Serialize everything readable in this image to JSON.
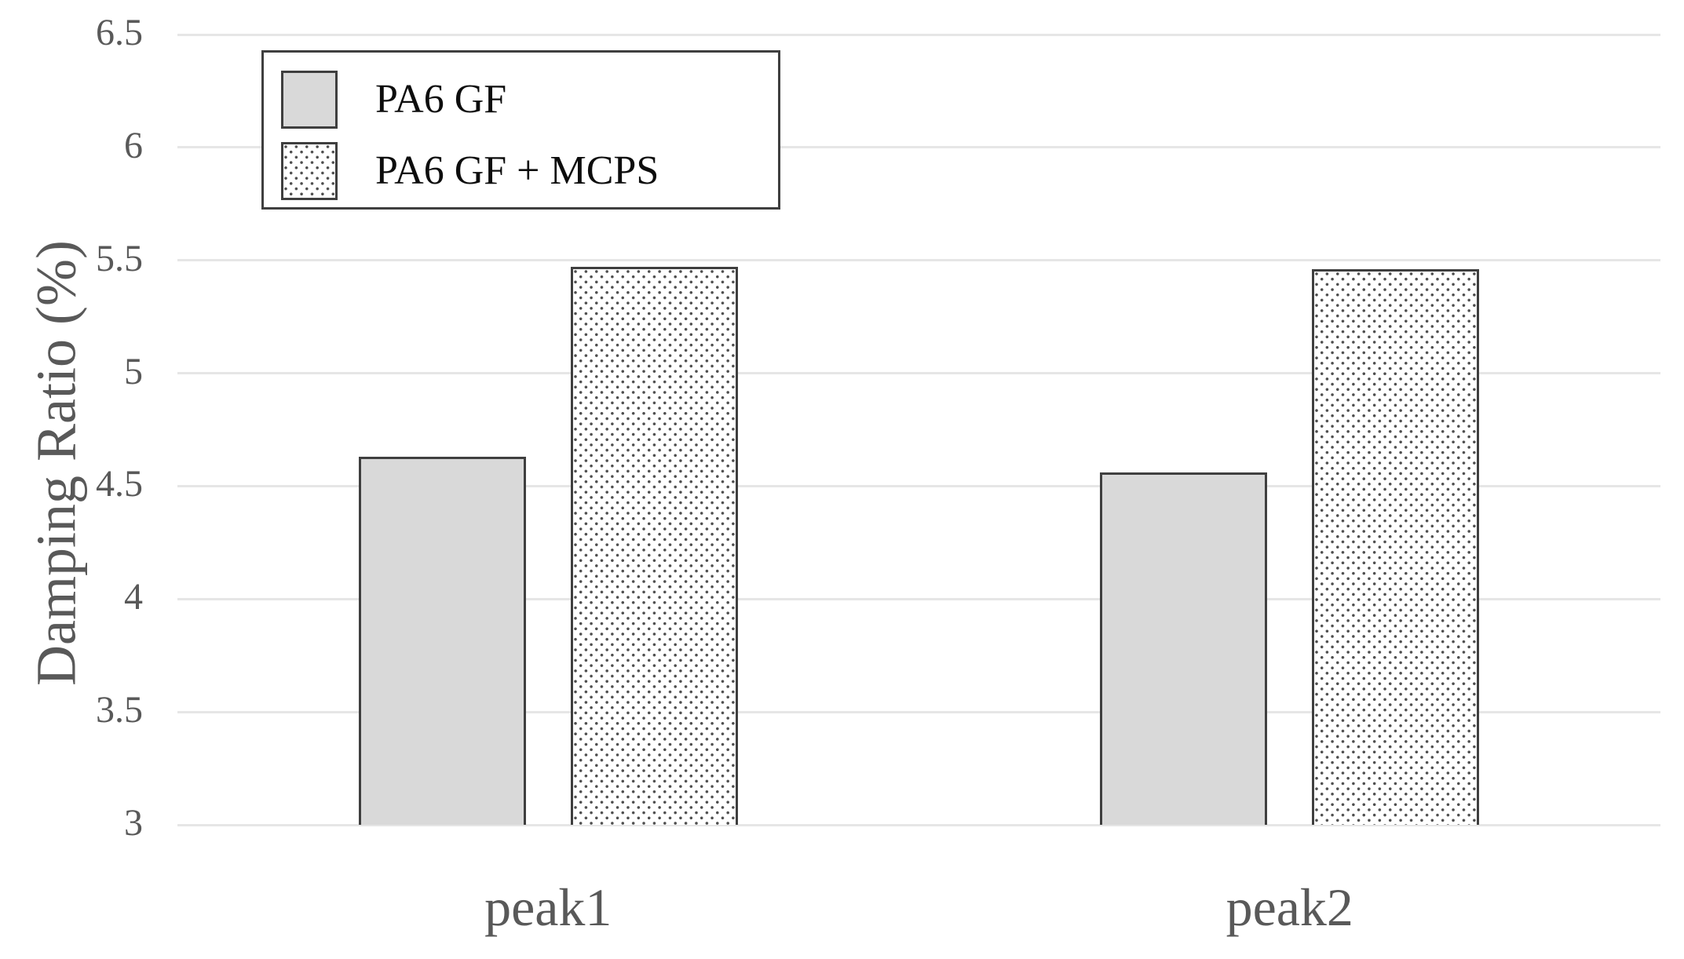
{
  "chart_data": {
    "type": "bar",
    "title": "",
    "categories": [
      "peak1",
      "peak2"
    ],
    "series": [
      {
        "name": "PA6 GF",
        "pattern": "solid",
        "values": [
          4.63,
          4.56
        ]
      },
      {
        "name": "PA6 GF + MCPS",
        "pattern": "dotted",
        "values": [
          5.47,
          5.46
        ]
      }
    ],
    "xlabel": "",
    "ylabel": "Damping Ratio (%)",
    "ylim": [
      3,
      6.5
    ],
    "ytick_step": 0.5,
    "ytick_labels": [
      "3",
      "3.5",
      "4",
      "4.5",
      "5",
      "5.5",
      "6",
      "6.5"
    ],
    "grid": true,
    "legend_position": "top-left"
  },
  "colors": {
    "background": "#ffffff",
    "bar_fill": "#d9d9d9",
    "bar_border": "#3f3f3f",
    "dot_pattern": "#4d4d4d",
    "grid_line": "#e6e6e6",
    "axis_text": "#595959",
    "legend_text": "#0d0d0d",
    "legend_border": "#3f3f3f"
  }
}
